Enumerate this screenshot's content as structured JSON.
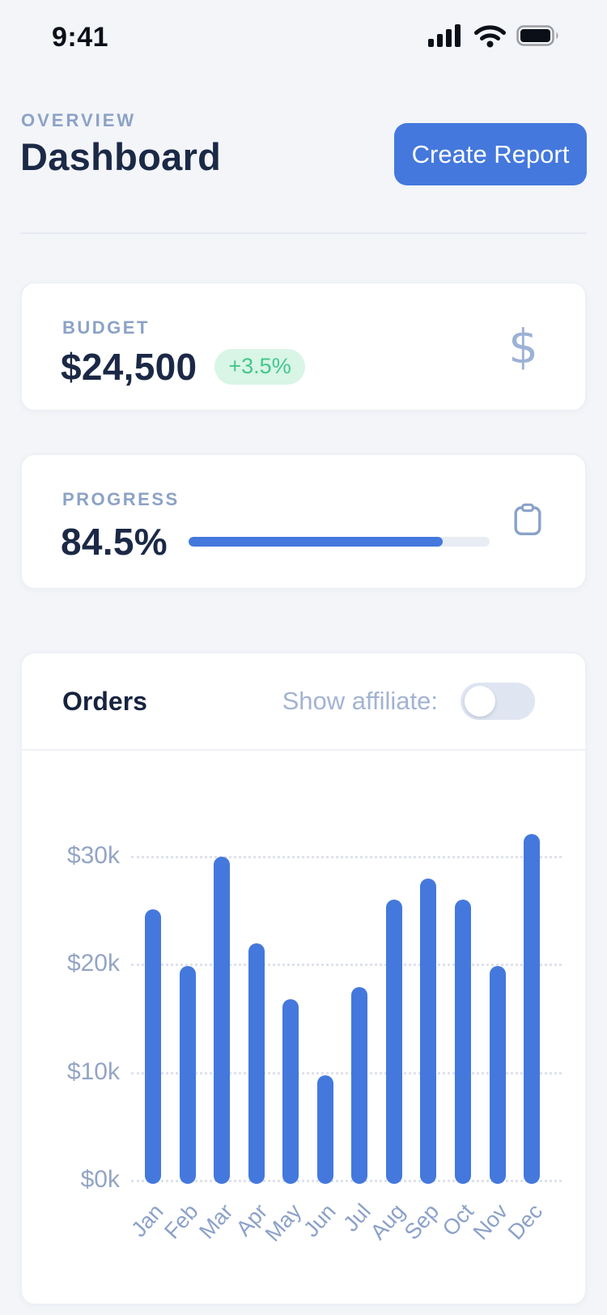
{
  "status_bar": {
    "time": "9:41"
  },
  "header": {
    "eyebrow": "OVERVIEW",
    "title": "Dashboard",
    "create_report_label": "Create Report"
  },
  "budget_card": {
    "label": "BUDGET",
    "value": "$24,500",
    "delta": "+3.5%",
    "icon": "dollar-icon",
    "icon_glyph": "$"
  },
  "progress_card": {
    "label": "PROGRESS",
    "value": "84.5%",
    "percent": 84.5,
    "icon": "clipboard-icon"
  },
  "orders_card": {
    "title": "Orders",
    "toggle_label": "Show affiliate:",
    "toggle_on": false
  },
  "chart_data": {
    "type": "bar",
    "title": "Orders",
    "xlabel": "",
    "ylabel": "",
    "categories": [
      "Jan",
      "Feb",
      "Mar",
      "Apr",
      "May",
      "Jun",
      "Jul",
      "Aug",
      "Sep",
      "Oct",
      "Nov",
      "Dec"
    ],
    "values": [
      25.0,
      19.8,
      29.9,
      21.9,
      16.7,
      9.7,
      17.8,
      25.9,
      27.9,
      25.9,
      19.8,
      32.0
    ],
    "values_unit": "thousand USD",
    "yticks": [
      0,
      10,
      20,
      30
    ],
    "ytick_labels": [
      "$0k",
      "$10k",
      "$20k",
      "$30k"
    ],
    "ylim": [
      0,
      35
    ],
    "grid": "horizontal-dotted",
    "legend": "none",
    "bar_color": "#4478dd"
  },
  "colors": {
    "accent_blue": "#4478dd",
    "navy_text": "#1b2946",
    "muted_label": "#8ca2c6",
    "green_text": "#43c78a",
    "green_bg": "#d8f5e6",
    "background": "#f3f5f9",
    "card_bg": "#ffffff",
    "toggle_track": "#dfe5f1"
  }
}
